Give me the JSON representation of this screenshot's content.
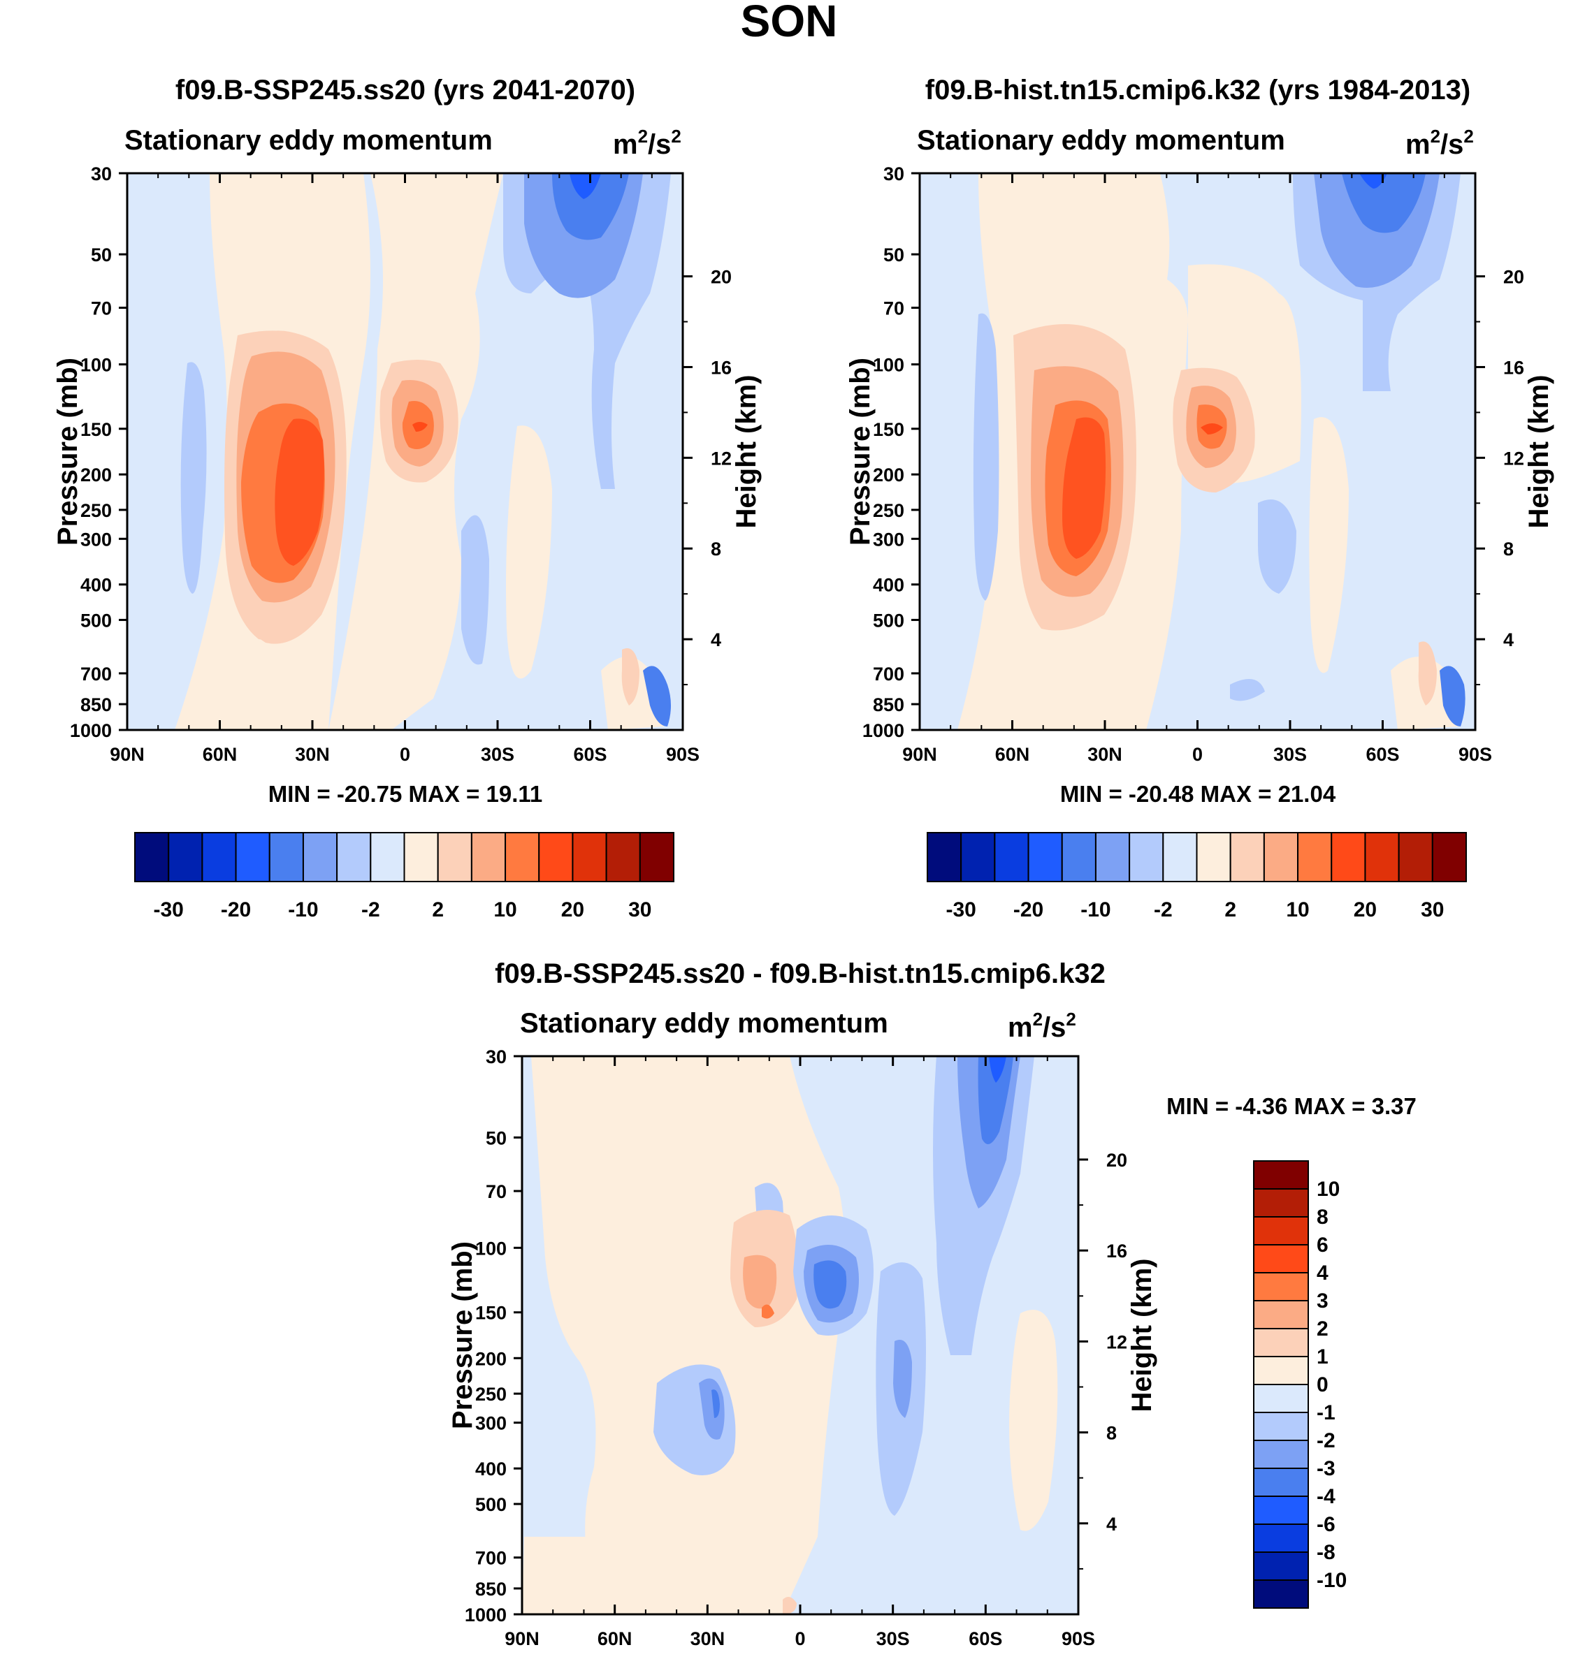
{
  "figure_title": "SON",
  "colors": {
    "colorbar_main": [
      "#000c7c",
      "#0022b0",
      "#0a3de0",
      "#1f5cff",
      "#4a7fef",
      "#7da1f4",
      "#b3cbfc",
      "#dbe9fc",
      "#fdeedd",
      "#fcd1b9",
      "#fbab85",
      "#ff7a40",
      "#ff4a18",
      "#e0320a",
      "#b31e06",
      "#800000"
    ],
    "colorbar_diff": [
      "#000c7c",
      "#0022b0",
      "#0a3de0",
      "#1f5cff",
      "#4a7fef",
      "#7da1f4",
      "#b3cbfc",
      "#dbe9fc",
      "#fdeedd",
      "#fcd1b9",
      "#fbab85",
      "#ff7a40",
      "#ff4a18",
      "#e0320a",
      "#b31e06",
      "#800000"
    ]
  },
  "chart_data": [
    {
      "type": "heatmap",
      "title": "f09.B-SSP245.ss20 (yrs 2041-2070)",
      "left_subtitle": "Stationary eddy momentum",
      "right_subtitle": "m²/s²",
      "units_base": "m",
      "units_exp": "2",
      "units_slash": "/s",
      "units_exp2": "2",
      "xlabel": "",
      "ylabel": "Pressure (mb)",
      "ylabel_right": "Height (km)",
      "x_ticks": [
        "90N",
        "60N",
        "30N",
        "0",
        "30S",
        "60S",
        "90S"
      ],
      "y_ticks": [
        "30",
        "50",
        "70",
        "100",
        "150",
        "200",
        "250",
        "300",
        "400",
        "500",
        "700",
        "850",
        "1000"
      ],
      "y_ticks_right": [
        "20",
        "16",
        "12",
        "8",
        "4"
      ],
      "ylim_mb": [
        1000,
        30
      ],
      "min_label": "MIN = -20.75  MAX =  19.11",
      "min": -20.75,
      "max": 19.11,
      "colorbar_labels": [
        "-30",
        "-20",
        "-10",
        "-2",
        "2",
        "10",
        "20",
        "30"
      ],
      "features": [
        {
          "name": "NH subtropical positive core",
          "lat": 33,
          "p": 180,
          "value": 19.11,
          "sign": "positive"
        },
        {
          "name": "equatorial positive core",
          "lat": -4,
          "p": 150,
          "value": 12,
          "sign": "positive"
        },
        {
          "name": "SH high-latitude negative core",
          "lat": -58,
          "p": 30,
          "value": -20.75,
          "sign": "negative"
        },
        {
          "name": "NH high-latitude weak negative",
          "lat": 0,
          "p": 0,
          "value": -3,
          "sign": "negative"
        }
      ]
    },
    {
      "type": "heatmap",
      "title": "f09.B-hist.tn15.cmip6.k32 (yrs 1984-2013)",
      "left_subtitle": "Stationary eddy momentum",
      "right_subtitle": "m²/s²",
      "units_base": "m",
      "units_exp": "2",
      "units_slash": "/s",
      "units_exp2": "2",
      "xlabel": "",
      "ylabel": "Pressure (mb)",
      "ylabel_right": "Height (km)",
      "x_ticks": [
        "90N",
        "60N",
        "30N",
        "0",
        "30S",
        "60S",
        "90S"
      ],
      "y_ticks": [
        "30",
        "50",
        "70",
        "100",
        "150",
        "200",
        "250",
        "300",
        "400",
        "500",
        "700",
        "850",
        "1000"
      ],
      "y_ticks_right": [
        "20",
        "16",
        "12",
        "8",
        "4"
      ],
      "ylim_mb": [
        1000,
        30
      ],
      "min_label": "MIN = -20.48  MAX =  21.04",
      "min": -20.48,
      "max": 21.04,
      "colorbar_labels": [
        "-30",
        "-20",
        "-10",
        "-2",
        "2",
        "10",
        "20",
        "30"
      ],
      "features": [
        {
          "name": "NH subtropical positive core",
          "lat": 30,
          "p": 200,
          "value": 21.04,
          "sign": "positive"
        },
        {
          "name": "equatorial positive core",
          "lat": -6,
          "p": 150,
          "value": 13,
          "sign": "positive"
        },
        {
          "name": "SH high-latitude negative core",
          "lat": -57,
          "p": 30,
          "value": -20.48,
          "sign": "negative"
        }
      ]
    },
    {
      "type": "heatmap",
      "title": "f09.B-SSP245.ss20 - f09.B-hist.tn15.cmip6.k32",
      "left_subtitle": "Stationary eddy momentum",
      "right_subtitle": "m²/s²",
      "units_base": "m",
      "units_exp": "2",
      "units_slash": "/s",
      "units_exp2": "2",
      "xlabel": "",
      "ylabel": "Pressure (mb)",
      "ylabel_right": "Height (km)",
      "x_ticks": [
        "90N",
        "60N",
        "30N",
        "0",
        "30S",
        "60S",
        "90S"
      ],
      "y_ticks": [
        "30",
        "50",
        "70",
        "100",
        "150",
        "200",
        "250",
        "300",
        "400",
        "500",
        "700",
        "850",
        "1000"
      ],
      "y_ticks_right": [
        "20",
        "16",
        "12",
        "8",
        "4"
      ],
      "ylim_mb": [
        1000,
        30
      ],
      "min_label_a": "MIN =  -4.36  MAX =   3.37",
      "min": -4.36,
      "max": 3.37,
      "colorbar_labels": [
        "10",
        "8",
        "6",
        "4",
        "3",
        "2",
        "1",
        "0",
        "-1",
        "-2",
        "-3",
        "-4",
        "-6",
        "-8",
        "-10"
      ],
      "features": [
        {
          "name": "positive core north of equator",
          "lat": 10,
          "p": 150,
          "value": 3.37,
          "sign": "positive"
        },
        {
          "name": "negative core south of equator",
          "lat": -10,
          "p": 160,
          "value": -4.36,
          "sign": "negative"
        },
        {
          "name": "SH high-latitude negative",
          "lat": -65,
          "p": 40,
          "value": -4,
          "sign": "negative"
        }
      ]
    }
  ]
}
